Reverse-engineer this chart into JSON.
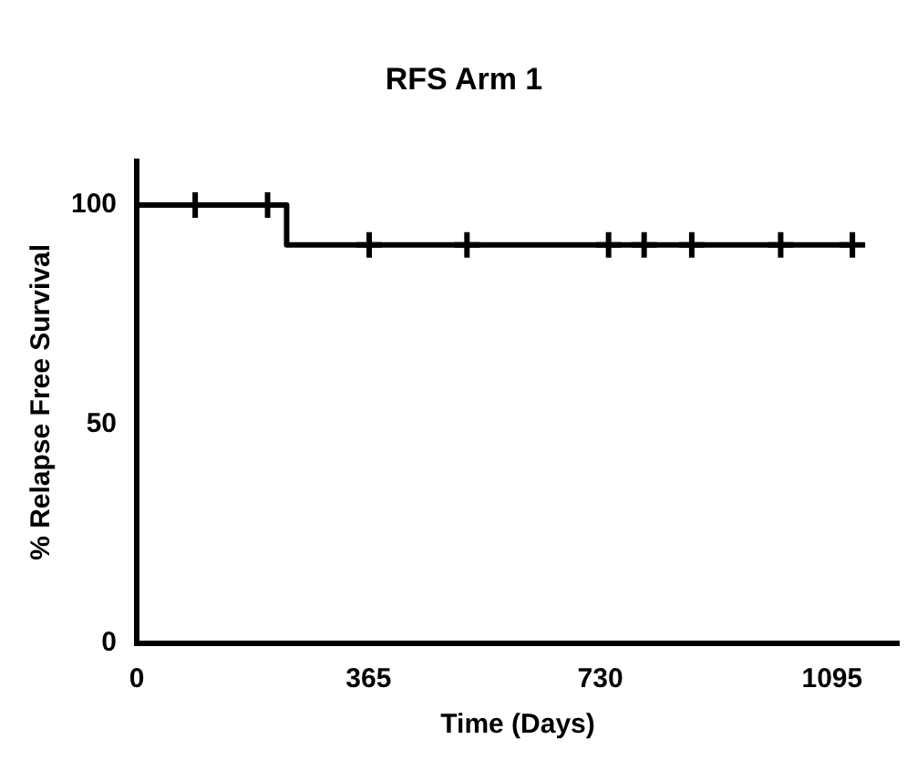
{
  "chart_data": {
    "type": "step",
    "title": "RFS Arm 1",
    "xlabel": "Time (Days)",
    "ylabel": "% Relapse Free Survival",
    "xlim": [
      0,
      1200
    ],
    "xticks": [
      0,
      365,
      730,
      1095
    ],
    "ylim": [
      0,
      110
    ],
    "yticks": [
      0,
      50,
      100
    ],
    "grid": false,
    "legend": false,
    "series": [
      {
        "color": "#000000",
        "x": [
          0,
          236,
          1127
        ],
        "values": [
          100,
          90.9,
          90.9
        ],
        "marker": "none"
      },
      {
        "type": "scatter",
        "color": "#000000",
        "x": [
          92,
          206,
          366,
          520,
          743,
          799,
          874,
          1014,
          1127
        ],
        "values": [
          100,
          100,
          90.9,
          90.9,
          90.9,
          90.9,
          90.9,
          90.9,
          90.9
        ],
        "marker": "cross"
      }
    ]
  }
}
